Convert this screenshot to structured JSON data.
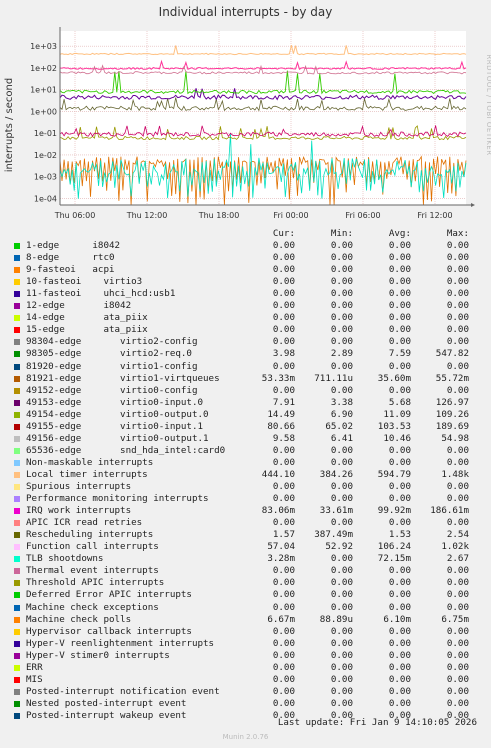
{
  "chart_data": {
    "type": "line",
    "title": "Individual interrupts - by day",
    "ylabel": "interrupts / second",
    "yscale": "log",
    "ylim": [
      5e-05,
      5000
    ],
    "y_ticks": [
      "1e-04",
      "1e-03",
      "1e-02",
      "1e-01",
      "1e+00",
      "1e+01",
      "1e+02",
      "1e+03"
    ],
    "x_ticks": [
      "Thu 06:00",
      "Thu 12:00",
      "Thu 18:00",
      "Fri 00:00",
      "Fri 06:00",
      "Fri 12:00"
    ],
    "grid": true,
    "series_hint": [
      {
        "color": "#ffc080",
        "approx": 440,
        "note": "Local timer interrupts"
      },
      {
        "color": "#ff3399",
        "approx": 100,
        "note": "virtio0-input.1"
      },
      {
        "color": "#cc0066",
        "approx": 0.09,
        "note": "IRQ work interrupts"
      },
      {
        "color": "#33cc00",
        "approx": 8,
        "note": "virtio0-input.0 spikes"
      },
      {
        "color": "#660099",
        "approx": 5,
        "note": "virtio0-output.0"
      },
      {
        "color": "#666633",
        "approx": 1.5,
        "note": "Rescheduling interrupts"
      },
      {
        "color": "#999900",
        "approx": 0.06,
        "note": "Function call interrupts"
      },
      {
        "color": "#00e0c0",
        "approx": 0.003,
        "note": "TLB shootdowns"
      },
      {
        "color": "#e07000",
        "approx": 0.006,
        "note": "Machine check polls"
      }
    ]
  },
  "legend": {
    "headers": {
      "cur": "Cur:",
      "min": "Min:",
      "avg": "Avg:",
      "max": "Max:"
    },
    "rows": [
      {
        "color": "#00cc00",
        "name": "1-edge      i8042",
        "cur": "0.00",
        "min": "0.00",
        "avg": "0.00",
        "max": "0.00"
      },
      {
        "color": "#0066b3",
        "name": "8-edge      rtc0",
        "cur": "0.00",
        "min": "0.00",
        "avg": "0.00",
        "max": "0.00"
      },
      {
        "color": "#ff8000",
        "name": "9-fasteoi   acpi",
        "cur": "0.00",
        "min": "0.00",
        "avg": "0.00",
        "max": "0.00"
      },
      {
        "color": "#ffcc00",
        "name": "10-fasteoi    virtio3",
        "cur": "0.00",
        "min": "0.00",
        "avg": "0.00",
        "max": "0.00"
      },
      {
        "color": "#330099",
        "name": "11-fasteoi    uhci_hcd:usb1",
        "cur": "0.00",
        "min": "0.00",
        "avg": "0.00",
        "max": "0.00"
      },
      {
        "color": "#990099",
        "name": "12-edge       i8042",
        "cur": "0.00",
        "min": "0.00",
        "avg": "0.00",
        "max": "0.00"
      },
      {
        "color": "#ccff00",
        "name": "14-edge       ata_piix",
        "cur": "0.00",
        "min": "0.00",
        "avg": "0.00",
        "max": "0.00"
      },
      {
        "color": "#ff0000",
        "name": "15-edge       ata_piix",
        "cur": "0.00",
        "min": "0.00",
        "avg": "0.00",
        "max": "0.00"
      },
      {
        "color": "#808080",
        "name": "98304-edge       virtio2-config",
        "cur": "0.00",
        "min": "0.00",
        "avg": "0.00",
        "max": "0.00"
      },
      {
        "color": "#008f00",
        "name": "98305-edge       virtio2-req.0",
        "cur": "3.98",
        "min": "2.89",
        "avg": "7.59",
        "max": "547.82"
      },
      {
        "color": "#00487d",
        "name": "81920-edge       virtio1-config",
        "cur": "0.00",
        "min": "0.00",
        "avg": "0.00",
        "max": "0.00"
      },
      {
        "color": "#b35a00",
        "name": "81921-edge       virtio1-virtqueues",
        "cur": "53.33m",
        "min": "711.11u",
        "avg": "35.60m",
        "max": "55.72m"
      },
      {
        "color": "#b38f00",
        "name": "49152-edge       virtio0-config",
        "cur": "0.00",
        "min": "0.00",
        "avg": "0.00",
        "max": "0.00"
      },
      {
        "color": "#6b006b",
        "name": "49153-edge       virtio0-input.0",
        "cur": "7.91",
        "min": "3.38",
        "avg": "5.68",
        "max": "126.97"
      },
      {
        "color": "#8fb300",
        "name": "49154-edge       virtio0-output.0",
        "cur": "14.49",
        "min": "6.90",
        "avg": "11.09",
        "max": "109.26"
      },
      {
        "color": "#b30000",
        "name": "49155-edge       virtio0-input.1",
        "cur": "80.66",
        "min": "65.02",
        "avg": "103.53",
        "max": "189.69"
      },
      {
        "color": "#bebebe",
        "name": "49156-edge       virtio0-output.1",
        "cur": "9.58",
        "min": "6.41",
        "avg": "10.46",
        "max": "54.98"
      },
      {
        "color": "#80ff80",
        "name": "65536-edge       snd_hda_intel:card0",
        "cur": "0.00",
        "min": "0.00",
        "avg": "0.00",
        "max": "0.00"
      },
      {
        "color": "#80c9ff",
        "name": "Non-maskable interrupts",
        "cur": "0.00",
        "min": "0.00",
        "avg": "0.00",
        "max": "0.00"
      },
      {
        "color": "#ffc080",
        "name": "Local timer interrupts",
        "cur": "444.10",
        "min": "384.26",
        "avg": "594.79",
        "max": "1.48k"
      },
      {
        "color": "#ffe680",
        "name": "Spurious interrupts",
        "cur": "0.00",
        "min": "0.00",
        "avg": "0.00",
        "max": "0.00"
      },
      {
        "color": "#aa80ff",
        "name": "Performance monitoring interrupts",
        "cur": "0.00",
        "min": "0.00",
        "avg": "0.00",
        "max": "0.00"
      },
      {
        "color": "#ee00cc",
        "name": "IRQ work interrupts",
        "cur": "83.06m",
        "min": "33.61m",
        "avg": "99.92m",
        "max": "186.61m"
      },
      {
        "color": "#ff8080",
        "name": "APIC ICR read retries",
        "cur": "0.00",
        "min": "0.00",
        "avg": "0.00",
        "max": "0.00"
      },
      {
        "color": "#666600",
        "name": "Rescheduling interrupts",
        "cur": "1.57",
        "min": "387.49m",
        "avg": "1.53",
        "max": "2.54"
      },
      {
        "color": "#ffbfff",
        "name": "Function call interrupts",
        "cur": "57.04",
        "min": "52.92",
        "avg": "106.24",
        "max": "1.02k"
      },
      {
        "color": "#00ffcc",
        "name": "TLB shootdowns",
        "cur": "3.28m",
        "min": "0.00",
        "avg": "72.15m",
        "max": "2.67"
      },
      {
        "color": "#cc6699",
        "name": "Thermal event interrupts",
        "cur": "0.00",
        "min": "0.00",
        "avg": "0.00",
        "max": "0.00"
      },
      {
        "color": "#999900",
        "name": "Threshold APIC interrupts",
        "cur": "0.00",
        "min": "0.00",
        "avg": "0.00",
        "max": "0.00"
      },
      {
        "color": "#00cc00",
        "name": "Deferred Error APIC interrupts",
        "cur": "0.00",
        "min": "0.00",
        "avg": "0.00",
        "max": "0.00"
      },
      {
        "color": "#0066b3",
        "name": "Machine check exceptions",
        "cur": "0.00",
        "min": "0.00",
        "avg": "0.00",
        "max": "0.00"
      },
      {
        "color": "#ff8000",
        "name": "Machine check polls",
        "cur": "6.67m",
        "min": "88.89u",
        "avg": "6.10m",
        "max": "6.75m"
      },
      {
        "color": "#ffcc00",
        "name": "Hypervisor callback interrupts",
        "cur": "0.00",
        "min": "0.00",
        "avg": "0.00",
        "max": "0.00"
      },
      {
        "color": "#330099",
        "name": "Hyper-V reenlightenment interrupts",
        "cur": "0.00",
        "min": "0.00",
        "avg": "0.00",
        "max": "0.00"
      },
      {
        "color": "#990099",
        "name": "Hyper-V stimer0 interrupts",
        "cur": "0.00",
        "min": "0.00",
        "avg": "0.00",
        "max": "0.00"
      },
      {
        "color": "#ccff00",
        "name": "ERR",
        "cur": "0.00",
        "min": "0.00",
        "avg": "0.00",
        "max": "0.00"
      },
      {
        "color": "#ff0000",
        "name": "MIS",
        "cur": "0.00",
        "min": "0.00",
        "avg": "0.00",
        "max": "0.00"
      },
      {
        "color": "#808080",
        "name": "Posted-interrupt notification event",
        "cur": "0.00",
        "min": "0.00",
        "avg": "0.00",
        "max": "0.00"
      },
      {
        "color": "#008f00",
        "name": "Nested posted-interrupt event",
        "cur": "0.00",
        "min": "0.00",
        "avg": "0.00",
        "max": "0.00"
      },
      {
        "color": "#00487d",
        "name": "Posted-interrupt wakeup event",
        "cur": "0.00",
        "min": "0.00",
        "avg": "0.00",
        "max": "0.00"
      }
    ]
  },
  "footer": {
    "last_update": "Last update: Fri Jan  9 14:10:05 2026",
    "munin": "Munin 2.0.76"
  },
  "side_label": "RRDTOOL / TOBI OETIKER"
}
